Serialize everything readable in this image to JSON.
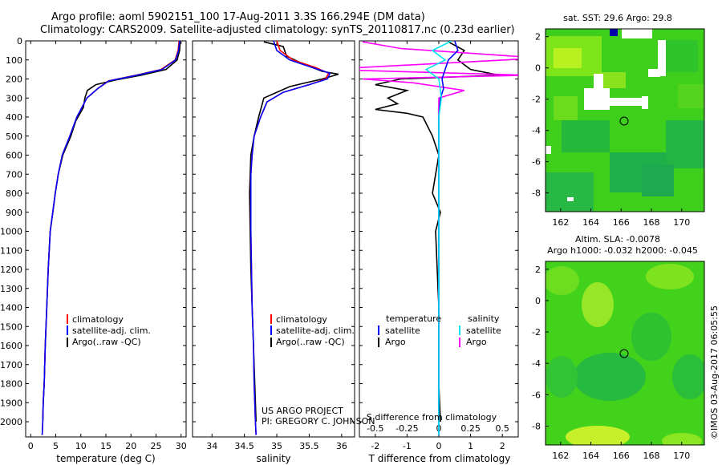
{
  "titles": {
    "line1": "Argo profile: aoml 5902151_100 17-Aug-2011 3.3S 166.294E (DM data)",
    "line2": "Climatology: CARS2009. Satellite-adjusted climatology: synTS_20110817.nc (0.23d earlier)"
  },
  "map_titles": {
    "sst": "sat. SST: 29.6  Argo: 29.8",
    "sla1": "Altim. SLA: -0.0078",
    "sla2": "Argo h1000: -0.032  h2000: -0.045"
  },
  "project": {
    "line1": "US ARGO PROJECT",
    "line2": "PI: GREGORY C. JOHNSON"
  },
  "stamp": "©IMOS 03-Aug-2017 06:05:55",
  "colors": {
    "climatology": "#ff0000",
    "satellite": "#0000ff",
    "argo": "#000000",
    "temp_sat": "#0000ff",
    "sal_sat": "#00e5ee",
    "sal_argo": "#ff00ff"
  },
  "chart_data": [
    {
      "type": "line",
      "xlabel": "temperature (deg C)",
      "xlim": [
        -1,
        31
      ],
      "ylim": [
        0,
        2080
      ],
      "xticks": [
        "0",
        "5",
        "10",
        "15",
        "20",
        "25",
        "30"
      ],
      "yticks": [
        "0",
        "100",
        "200",
        "300",
        "400",
        "500",
        "600",
        "700",
        "800",
        "900",
        "1000",
        "1100",
        "1200",
        "1300",
        "1400",
        "1500",
        "1600",
        "1700",
        "1800",
        "1900",
        "2000"
      ],
      "legend": [
        "climatology",
        "satellite-adj. clim.",
        "Argo(..raw -QC)"
      ],
      "series": [
        {
          "name": "climatology",
          "x": [
            29.6,
            29.4,
            28.8,
            26,
            21,
            15.5,
            13.4,
            11.2,
            9.2,
            7.8,
            6.3,
            5.5,
            4.9,
            4.4,
            3.9,
            3.5,
            3.2,
            2.9,
            2.7,
            2.5,
            2.4,
            2.3
          ],
          "y": [
            0,
            50,
            100,
            150,
            180,
            210,
            250,
            300,
            400,
            500,
            600,
            700,
            800,
            900,
            1000,
            1200,
            1400,
            1600,
            1800,
            1900,
            2000,
            2070
          ]
        },
        {
          "name": "satellite-adj. clim.",
          "x": [
            29.7,
            29.5,
            28.9,
            26.2,
            21.2,
            15.6,
            13.4,
            11.2,
            9.2,
            7.8,
            6.3,
            5.5,
            4.9,
            4.4,
            3.9,
            3.5,
            3.2,
            2.9,
            2.7,
            2.5,
            2.4,
            2.3
          ],
          "y": [
            0,
            50,
            100,
            150,
            180,
            210,
            250,
            300,
            400,
            500,
            600,
            700,
            800,
            900,
            1000,
            1200,
            1400,
            1600,
            1800,
            1900,
            2000,
            2070
          ]
        },
        {
          "name": "Argo(..raw -QC)",
          "x": [
            29.8,
            29.7,
            29.2,
            27,
            22,
            17,
            13,
            11.3,
            10.8,
            10.5,
            9,
            8,
            6.4,
            5.5,
            4.9,
            4.4,
            3.9,
            3.5,
            3.2,
            2.9,
            2.7,
            2.5,
            2.4
          ],
          "y": [
            5,
            50,
            100,
            150,
            180,
            205,
            230,
            260,
            300,
            350,
            420,
            500,
            600,
            700,
            800,
            900,
            1000,
            1200,
            1400,
            1600,
            1800,
            1900,
            2000
          ]
        }
      ]
    },
    {
      "type": "line",
      "xlabel": "salinity",
      "xlim": [
        33.7,
        36.2
      ],
      "ylim": [
        0,
        2080
      ],
      "xticks": [
        "34",
        "34.5",
        "35",
        "35.5",
        "36"
      ],
      "legend": [
        "climatology",
        "satellite-adj. clim.",
        "Argo(..raw -QC)"
      ],
      "series": [
        {
          "name": "climatology",
          "x": [
            35.0,
            35.05,
            35.25,
            35.6,
            35.8,
            35.75,
            35.5,
            35.1,
            34.85,
            34.75,
            34.65,
            34.62,
            34.6,
            34.6,
            34.6,
            34.61,
            34.62,
            34.64,
            34.65,
            34.66,
            34.67,
            34.68
          ],
          "y": [
            0,
            50,
            100,
            140,
            170,
            200,
            230,
            270,
            320,
            400,
            500,
            600,
            700,
            800,
            1000,
            1200,
            1400,
            1600,
            1800,
            1900,
            2000,
            2070
          ]
        },
        {
          "name": "satellite-adj. clim.",
          "x": [
            34.95,
            35.0,
            35.2,
            35.55,
            35.82,
            35.78,
            35.5,
            35.1,
            34.85,
            34.75,
            34.65,
            34.62,
            34.6,
            34.6,
            34.6,
            34.61,
            34.62,
            34.64,
            34.65,
            34.66,
            34.67,
            34.68
          ],
          "y": [
            0,
            50,
            100,
            140,
            170,
            200,
            230,
            270,
            320,
            400,
            500,
            600,
            700,
            800,
            1000,
            1200,
            1400,
            1600,
            1800,
            1900,
            2000,
            2070
          ]
        },
        {
          "name": "Argo(..raw -QC)",
          "x": [
            34.8,
            35.1,
            35.15,
            35.4,
            35.7,
            35.95,
            35.7,
            35.2,
            34.8,
            34.72,
            34.65,
            34.6,
            34.58,
            34.59,
            34.6,
            34.62,
            34.64,
            34.66,
            34.67,
            34.68
          ],
          "y": [
            5,
            30,
            80,
            120,
            160,
            175,
            200,
            240,
            300,
            400,
            500,
            600,
            800,
            1000,
            1200,
            1400,
            1600,
            1800,
            1900,
            2000
          ]
        }
      ]
    },
    {
      "type": "line",
      "xlabel": "T difference from climatology",
      "xlabel_top": "S difference from climatology",
      "xlim": [
        -2.5,
        2.5
      ],
      "ylim": [
        0,
        2080
      ],
      "xticks": [
        "-2",
        "-1",
        "0",
        "1",
        "2"
      ],
      "xticks_top": [
        "-0.5",
        "-0.25",
        "0",
        "0.25",
        "0.5"
      ],
      "legend_titles": [
        "temperature",
        "salinity"
      ],
      "legend": [
        "satellite",
        "Argo",
        "satellite",
        "Argo"
      ],
      "series": [
        {
          "name": "satellite",
          "group": "temperature",
          "x": [
            0.5,
            0.6,
            0.3,
            0.2,
            0.1,
            0.15,
            0.05,
            0.0,
            0.0,
            0.0
          ],
          "y": [
            0,
            50,
            100,
            150,
            200,
            250,
            300,
            400,
            600,
            2070
          ]
        },
        {
          "name": "Argo",
          "group": "temperature",
          "x": [
            0.3,
            0.8,
            0.6,
            1.0,
            1.9,
            -1.2,
            -2.0,
            -1.0,
            -1.6,
            -1.3,
            -2.0,
            -1.0,
            -0.5,
            -0.2,
            0.0,
            -0.2,
            0.05,
            -0.1,
            0.0,
            0.0,
            0.05
          ],
          "y": [
            5,
            50,
            100,
            150,
            180,
            200,
            230,
            260,
            300,
            330,
            360,
            380,
            400,
            500,
            600,
            800,
            900,
            1000,
            1400,
            1800,
            2000
          ]
        },
        {
          "name": "satellite",
          "group": "salinity",
          "x": [
            0.1,
            -0.05,
            0.05,
            -0.1,
            0.0,
            0.02,
            0.0,
            0.0,
            0.0
          ],
          "y": [
            0,
            50,
            100,
            150,
            200,
            300,
            400,
            800,
            2070
          ]
        },
        {
          "name": "Argo",
          "group": "salinity",
          "x": [
            -0.6,
            -0.3,
            0.8,
            -0.9,
            0.7,
            -0.6,
            -0.2,
            0.2,
            0.0,
            0.0,
            0.0,
            0.0
          ],
          "y": [
            5,
            40,
            90,
            150,
            180,
            200,
            220,
            260,
            300,
            400,
            800,
            2000
          ]
        }
      ]
    },
    {
      "type": "heatmap",
      "title": "sat. SST: 29.6  Argo: 29.8",
      "xlim": [
        161,
        171.5
      ],
      "ylim": [
        -9.2,
        2.5
      ],
      "xticks": [
        "162",
        "164",
        "166",
        "168",
        "170"
      ],
      "yticks": [
        "2",
        "0",
        "-2",
        "-4",
        "-6",
        "-8"
      ],
      "marker": {
        "x": 166.3,
        "y": -3.3
      }
    },
    {
      "type": "heatmap",
      "title": "Altim. SLA: -0.0078",
      "xlim": [
        161,
        171.5
      ],
      "ylim": [
        -9.2,
        2.5
      ],
      "xticks": [
        "162",
        "164",
        "166",
        "168",
        "170"
      ],
      "yticks": [
        "2",
        "0",
        "-2",
        "-4",
        "-6",
        "-8"
      ],
      "marker": {
        "x": 166.3,
        "y": -3.3
      }
    }
  ]
}
